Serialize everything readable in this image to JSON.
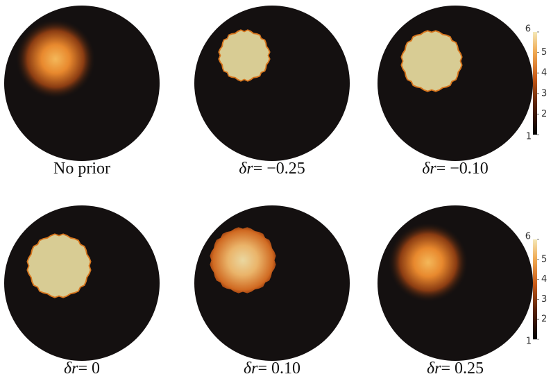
{
  "panels": [
    {
      "caption": "No prior"
    },
    {
      "symbol": "δr",
      "value": "= −0.25"
    },
    {
      "symbol": "δr",
      "value": "= −0.10"
    },
    {
      "symbol": "δr",
      "value": "= 0"
    },
    {
      "symbol": "δr",
      "value": "= 0.10"
    },
    {
      "symbol": "δr",
      "value": "= 0.25"
    }
  ],
  "colorbars": [
    {
      "ticks": [
        1,
        2,
        3,
        4,
        5,
        6
      ]
    },
    {
      "ticks": [
        1,
        2,
        3,
        4,
        5,
        6
      ]
    }
  ]
}
